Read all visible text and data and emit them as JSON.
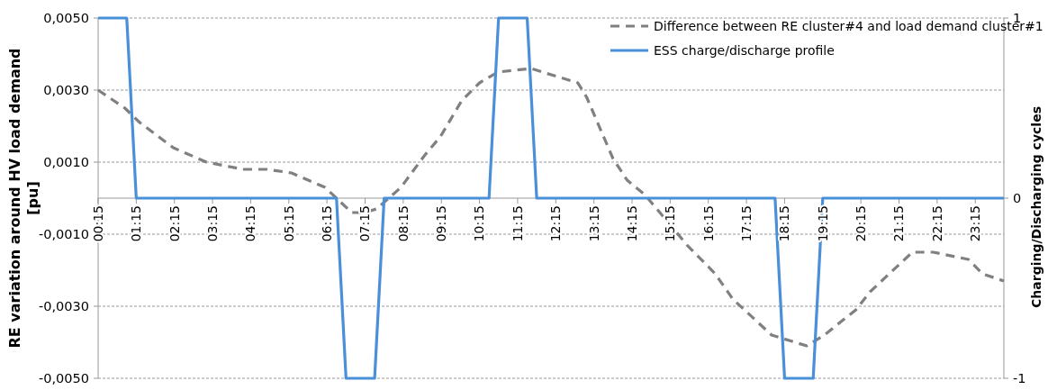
{
  "chart_data": {
    "type": "line",
    "ylabel": "RE variation around HV load demand\n[pu]",
    "y2label": "Charging/Discharging cycles",
    "xlim": [
      0.25,
      24
    ],
    "xticks": [
      {
        "value": 0.25,
        "label": "00:15"
      },
      {
        "value": 1.25,
        "label": "01:15"
      },
      {
        "value": 2.25,
        "label": "02:15"
      },
      {
        "value": 3.25,
        "label": "03:15"
      },
      {
        "value": 4.25,
        "label": "04:15"
      },
      {
        "value": 5.25,
        "label": "05:15"
      },
      {
        "value": 6.25,
        "label": "06:15"
      },
      {
        "value": 7.25,
        "label": "07:15"
      },
      {
        "value": 8.25,
        "label": "08:15"
      },
      {
        "value": 9.25,
        "label": "09:15"
      },
      {
        "value": 10.25,
        "label": "10:15"
      },
      {
        "value": 11.25,
        "label": "11:15"
      },
      {
        "value": 12.25,
        "label": "12:15"
      },
      {
        "value": 13.25,
        "label": "13:15"
      },
      {
        "value": 14.25,
        "label": "14:15"
      },
      {
        "value": 15.25,
        "label": "15:15"
      },
      {
        "value": 16.25,
        "label": "16:15"
      },
      {
        "value": 17.25,
        "label": "17:15"
      },
      {
        "value": 18.25,
        "label": "18:15"
      },
      {
        "value": 19.25,
        "label": "19:15"
      },
      {
        "value": 20.25,
        "label": "20:15"
      },
      {
        "value": 21.25,
        "label": "21:15"
      },
      {
        "value": 22.25,
        "label": "22:15"
      },
      {
        "value": 23.25,
        "label": "23:15"
      }
    ],
    "ylim": [
      -0.005,
      0.005
    ],
    "yticks": [
      {
        "value": -0.005,
        "label": "-0,0050"
      },
      {
        "value": -0.003,
        "label": "-0,0030"
      },
      {
        "value": -0.001,
        "label": "-0,0010"
      },
      {
        "value": 0.001,
        "label": "0,0010"
      },
      {
        "value": 0.003,
        "label": "0,0030"
      },
      {
        "value": 0.005,
        "label": "0,0050"
      }
    ],
    "y2lim": [
      -1,
      1
    ],
    "y2ticks": [
      -1,
      0,
      1
    ],
    "grid": "y",
    "legend": "top right",
    "marker": "none",
    "series": [
      {
        "name": "Difference between RE cluster#4 and load demand cluster#1",
        "color": "#808080",
        "line_style": "dashed",
        "x": [
          0.25,
          0.95,
          1.34,
          2.22,
          3.09,
          4.05,
          4.68,
          5.32,
          6.2,
          6.5,
          6.9,
          7.23,
          7.55,
          8.19,
          8.82,
          9.22,
          9.78,
          10.25,
          10.73,
          11.6,
          11.9,
          12.83,
          13.06,
          13.75,
          14.12,
          14.58,
          15.14,
          15.69,
          16.43,
          16.89,
          17.91,
          18.83,
          19.29,
          20.12,
          20.49,
          21.6,
          22.15,
          23.07,
          23.44,
          24
        ],
        "values": [
          0.003,
          0.0025,
          0.0021,
          0.0014,
          0.001,
          0.0008,
          0.0008,
          0.0007,
          0.0003,
          0,
          -0.0004,
          -0.0004,
          -0.0003,
          0.0003,
          0.0012,
          0.0017,
          0.0027,
          0.0032,
          0.0035,
          0.0036,
          0.0035,
          0.0032,
          0.0028,
          0.0011,
          0.0005,
          0.0001,
          -0.0006,
          -0.0013,
          -0.0021,
          -0.0028,
          -0.0038,
          -0.0041,
          -0.0038,
          -0.0031,
          -0.0026,
          -0.0015,
          -0.0015,
          -0.0017,
          -0.0021,
          -0.0023
        ]
      },
      {
        "name": "ESS charge/discharge profile",
        "color": "#4a90d9",
        "line_style": "solid",
        "axis": "y2",
        "x": [
          0.25,
          1,
          1.25,
          6.5,
          6.75,
          7.5,
          7.75,
          10.5,
          10.75,
          11.5,
          11.75,
          18,
          18.25,
          19,
          19.25,
          24
        ],
        "values": [
          1,
          1,
          0,
          0,
          -1,
          -1,
          0,
          0,
          1,
          1,
          0,
          0,
          -1,
          -1,
          0,
          0
        ]
      }
    ]
  }
}
